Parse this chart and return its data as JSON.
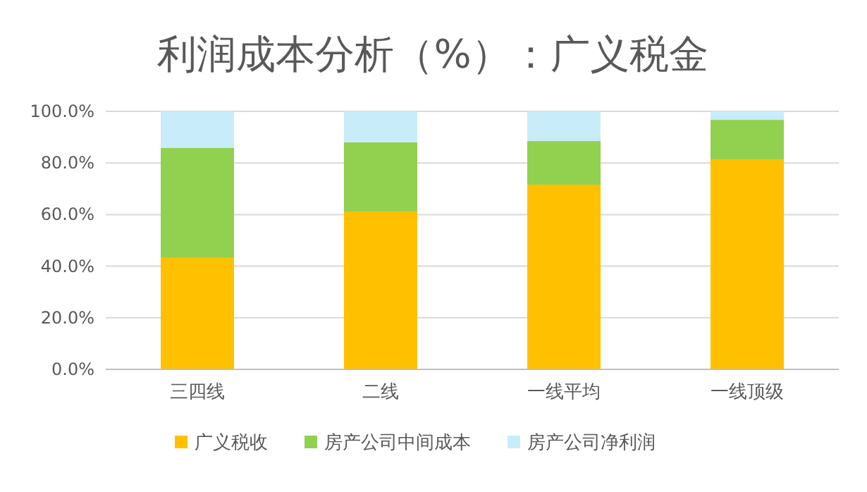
{
  "chart_data": {
    "type": "bar",
    "title": "利润成本分析（%）：广义税金",
    "stacked": true,
    "categories": [
      "三四线",
      "二线",
      "一线平均",
      "一线顶级"
    ],
    "series": [
      {
        "name": "广义税收",
        "color": "#ffc000",
        "values": [
          43.2,
          61.2,
          71.6,
          81.4
        ]
      },
      {
        "name": "房产公司中间成本",
        "color": "#92d050",
        "values": [
          42.6,
          26.8,
          16.9,
          15.3
        ]
      },
      {
        "name": "房产公司净利润",
        "color": "#c9ecfa",
        "values": [
          14.2,
          12.0,
          11.5,
          3.3
        ]
      }
    ],
    "ylim": [
      0,
      100
    ],
    "yticks": [
      {
        "value": 0,
        "label": "0.0%"
      },
      {
        "value": 20,
        "label": "20.0%"
      },
      {
        "value": 40,
        "label": "40.0%"
      },
      {
        "value": 60,
        "label": "60.0%"
      },
      {
        "value": 80,
        "label": "80.0%"
      },
      {
        "value": 100,
        "label": "100.0%"
      }
    ],
    "grid": "y",
    "legend": "bottom"
  }
}
